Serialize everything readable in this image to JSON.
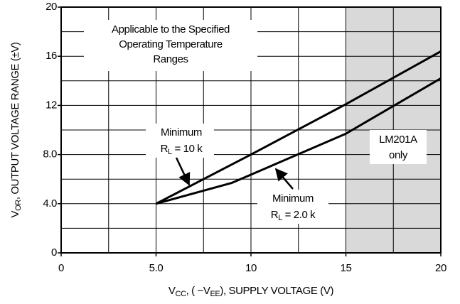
{
  "chart_data": {
    "type": "line",
    "x_label": [
      {
        "text": "V"
      },
      {
        "text": "CC",
        "sub": true
      },
      {
        "text": ", ( −V"
      },
      {
        "text": "EE",
        "sub": true
      },
      {
        "text": "), SUPPLY VOLTAGE (V)"
      }
    ],
    "y_label": [
      {
        "text": "V"
      },
      {
        "text": "OR",
        "sub": true
      },
      {
        "text": ", OUTPUT VOLTAGE RANGE (±V)"
      }
    ],
    "xlim": [
      0,
      20
    ],
    "ylim": [
      0,
      20
    ],
    "xticks": [
      0,
      {
        "value": 5,
        "label": "5.0"
      },
      10,
      15,
      20
    ],
    "yticks": [
      0,
      {
        "value": 4,
        "label": "4.0"
      },
      {
        "value": 8,
        "label": "8.0"
      },
      12,
      16,
      20
    ],
    "xgrid": [
      2.5,
      5,
      7.5,
      10,
      12.5,
      15,
      17.5
    ],
    "ygrid": [
      2,
      4,
      6,
      8,
      10,
      12,
      14,
      16,
      18
    ],
    "shaded_xrange": [
      15,
      20
    ],
    "shade_color": "#d9d9d9",
    "series": [
      {
        "color": "#000000",
        "x": [
          5,
          10,
          15,
          20
        ],
        "values": [
          4,
          8,
          12.1,
          16.4
        ]
      },
      {
        "color": "#000000",
        "x": [
          5,
          9,
          15,
          20
        ],
        "values": [
          4,
          5.7,
          9.7,
          14.2
        ]
      }
    ],
    "annotations": [
      {
        "lines": [
          [
            {
              "text": "Applicable to the Specified"
            }
          ],
          [
            {
              "text": "Operating Temperature"
            }
          ],
          [
            {
              "text": "Ranges"
            }
          ]
        ]
      },
      {
        "lines": [
          [
            {
              "text": "Minimum"
            }
          ],
          [
            {
              "text": "R"
            },
            {
              "text": "L",
              "sub": true
            },
            {
              "text": " = 10 k"
            }
          ]
        ]
      },
      {
        "lines": [
          [
            {
              "text": "Minimum"
            }
          ],
          [
            {
              "text": "R"
            },
            {
              "text": "L",
              "sub": true
            },
            {
              "text": " = 2.0 k"
            }
          ]
        ]
      },
      {
        "lines": [
          [
            {
              "text": "LM201A"
            }
          ],
          [
            {
              "text": "only"
            }
          ]
        ]
      }
    ]
  }
}
